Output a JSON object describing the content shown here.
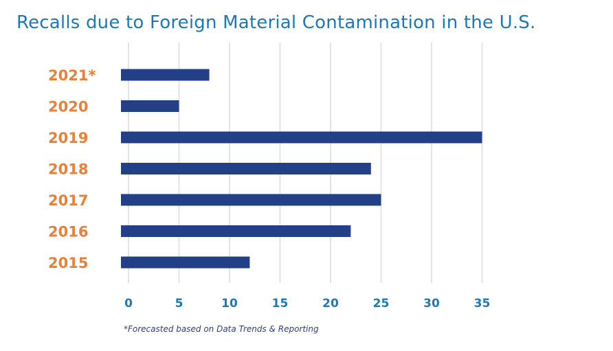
{
  "title": "Recalls due to Foreign Material Contamination in the U.S.",
  "footnote": "*Forecasted based on Data Trends & Reporting",
  "colors": {
    "title": "#1f77b4",
    "bar": "#233f86",
    "category_label": "#e8803a",
    "tick_label": "#1f77b4",
    "grid": "#e3e3e3",
    "footnote": "#2c3e73"
  },
  "chart_data": {
    "type": "bar",
    "orientation": "horizontal",
    "categories": [
      "2021*",
      "2020",
      "2019",
      "2018",
      "2017",
      "2016",
      "2015"
    ],
    "values": [
      8,
      5,
      35,
      24,
      25,
      22,
      12
    ],
    "xticks": [
      "0",
      "5",
      "10",
      "15",
      "20",
      "25",
      "30",
      "35"
    ],
    "xlim": [
      0,
      35
    ],
    "grid": "vertical",
    "legend": "none",
    "xlabel": "",
    "ylabel": ""
  }
}
